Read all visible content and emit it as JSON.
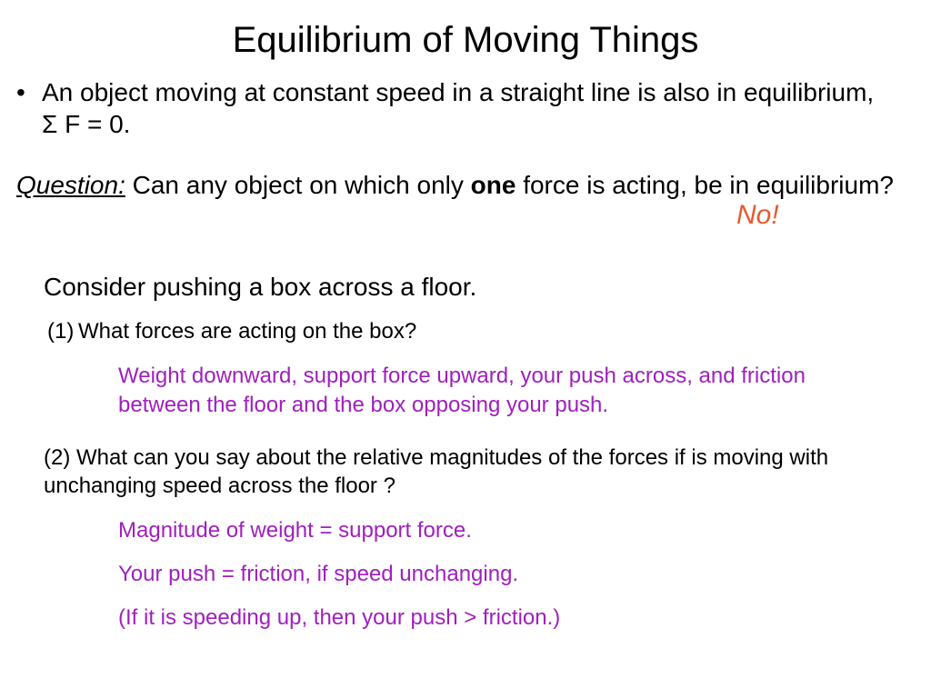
{
  "slide": {
    "title": "Equilibrium of Moving Things",
    "bullet": {
      "text_before": "An object moving at constant speed in a straight line is also in equilibrium, ",
      "sigma": "Σ",
      "text_after": " F = 0."
    },
    "question": {
      "label": "Question:",
      "before_bold": " Can any object on which only ",
      "bold": "one",
      "after_bold": " force is acting, be in equilibrium?"
    },
    "answer_no": "No!",
    "consider": "Consider pushing a box across a floor.",
    "q1": {
      "num": "(1)",
      "text": "What forces are acting on the box?",
      "answer": "Weight downward, support force upward, your push across, and friction between the floor and the box opposing your push."
    },
    "q2": {
      "text": "(2) What can you say about the relative magnitudes of the forces if is moving with unchanging speed across the floor ?",
      "a1": "Magnitude of weight = support force.",
      "a2": "Your push = friction, if speed unchanging.",
      "a3": "(If it is speeding up, then your push > friction.)"
    }
  },
  "style": {
    "background": "#ffffff",
    "text_color": "#000000",
    "answer_color": "#a01fbf",
    "no_color": "#e85a2b",
    "title_fontsize": 40,
    "body_fontsize": 28,
    "sub_fontsize": 24,
    "font_family": "Arial"
  }
}
